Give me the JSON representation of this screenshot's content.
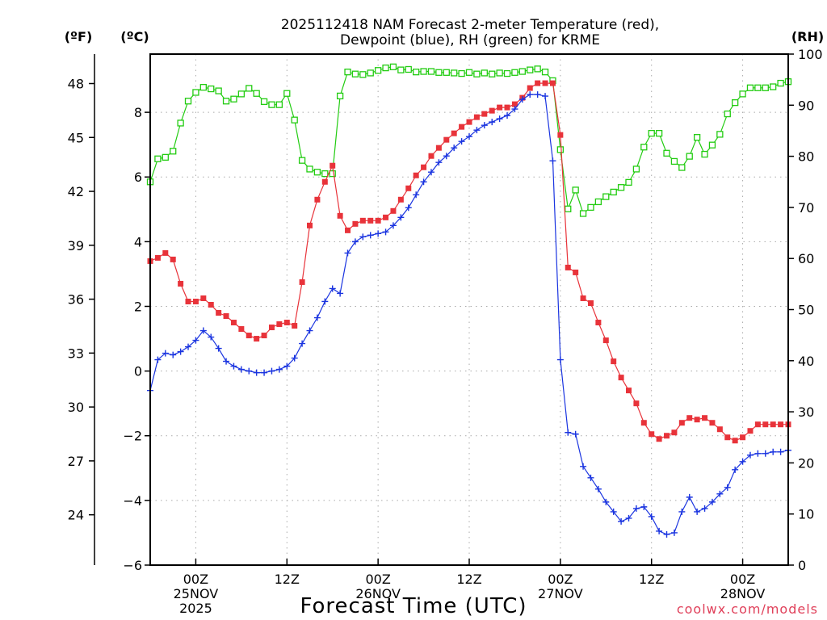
{
  "chart_data": {
    "type": "line",
    "title": [
      "2025112418 NAM Forecast 2-meter Temperature (red),",
      "Dewpoint (blue), RH (green) for KRME"
    ],
    "xlabel": "Forecast Time (UTC)",
    "watermark": "coolwx.com/models",
    "units": {
      "f": "(ºF)",
      "c": "(ºC)",
      "rh": "(RH)"
    },
    "x_unit": "forecast hour",
    "xlim": [
      0,
      84
    ],
    "ylim_c": [
      -6,
      9.8
    ],
    "ylim_rh": [
      0,
      100
    ],
    "x_ticks": [
      {
        "x": 6,
        "lines": [
          "00Z",
          "25NOV",
          "2025"
        ]
      },
      {
        "x": 18,
        "lines": [
          "12Z"
        ]
      },
      {
        "x": 30,
        "lines": [
          "00Z",
          "26NOV"
        ]
      },
      {
        "x": 42,
        "lines": [
          "12Z"
        ]
      },
      {
        "x": 54,
        "lines": [
          "00Z",
          "27NOV"
        ]
      },
      {
        "x": 66,
        "lines": [
          "12Z"
        ]
      },
      {
        "x": 78,
        "lines": [
          "00Z",
          "28NOV"
        ]
      }
    ],
    "y_ticks_c": [
      {
        "v": -6,
        "label": "−6"
      },
      {
        "v": -4,
        "label": "−4"
      },
      {
        "v": -2,
        "label": "−2"
      },
      {
        "v": 0,
        "label": "0"
      },
      {
        "v": 2,
        "label": "2"
      },
      {
        "v": 4,
        "label": "4"
      },
      {
        "v": 6,
        "label": "6"
      },
      {
        "v": 8,
        "label": "8"
      }
    ],
    "y_ticks_f": [
      {
        "v": 24,
        "label": "24"
      },
      {
        "v": 27,
        "label": "27"
      },
      {
        "v": 30,
        "label": "30"
      },
      {
        "v": 33,
        "label": "33"
      },
      {
        "v": 36,
        "label": "36"
      },
      {
        "v": 39,
        "label": "39"
      },
      {
        "v": 42,
        "label": "42"
      },
      {
        "v": 45,
        "label": "45"
      },
      {
        "v": 48,
        "label": "48"
      }
    ],
    "y_ticks_rh": [
      {
        "v": 0,
        "label": "0"
      },
      {
        "v": 10,
        "label": "10"
      },
      {
        "v": 20,
        "label": "20"
      },
      {
        "v": 30,
        "label": "30"
      },
      {
        "v": 40,
        "label": "40"
      },
      {
        "v": 50,
        "label": "50"
      },
      {
        "v": 60,
        "label": "60"
      },
      {
        "v": 70,
        "label": "70"
      },
      {
        "v": 80,
        "label": "80"
      },
      {
        "v": 90,
        "label": "90"
      },
      {
        "v": 100,
        "label": "100"
      }
    ],
    "series": [
      {
        "name": "Temperature",
        "unit": "C",
        "color": "#e8333a",
        "marker": "filled-square",
        "x": [
          0,
          1,
          2,
          3,
          4,
          5,
          6,
          7,
          8,
          9,
          10,
          11,
          12,
          13,
          14,
          15,
          16,
          17,
          18,
          19,
          20,
          21,
          22,
          23,
          24,
          25,
          26,
          27,
          28,
          29,
          30,
          31,
          32,
          33,
          34,
          35,
          36,
          37,
          38,
          39,
          40,
          41,
          42,
          43,
          44,
          45,
          46,
          47,
          48,
          49,
          50,
          51,
          52,
          53,
          54,
          55,
          56,
          57,
          58,
          59,
          60,
          61,
          62,
          63,
          64,
          65,
          66,
          67,
          68,
          69,
          70,
          71,
          72,
          73,
          74,
          75,
          76,
          77,
          78,
          79,
          80,
          81,
          82,
          83,
          84
        ],
        "values": [
          3.4,
          3.5,
          3.65,
          3.45,
          2.7,
          2.15,
          2.15,
          2.25,
          2.05,
          1.8,
          1.7,
          1.5,
          1.3,
          1.1,
          1.0,
          1.1,
          1.35,
          1.45,
          1.5,
          1.4,
          2.75,
          4.5,
          5.3,
          5.85,
          6.35,
          4.8,
          4.35,
          4.55,
          4.65,
          4.65,
          4.65,
          4.75,
          4.95,
          5.3,
          5.65,
          6.05,
          6.3,
          6.65,
          6.9,
          7.15,
          7.35,
          7.55,
          7.7,
          7.85,
          7.95,
          8.05,
          8.15,
          8.15,
          8.25,
          8.45,
          8.75,
          8.9,
          8.9,
          8.9,
          7.3,
          3.2,
          3.05,
          2.25,
          2.1,
          1.5,
          0.95,
          0.3,
          -0.2,
          -0.6,
          -1.0,
          -1.6,
          -1.95,
          -2.1,
          -2.0,
          -1.9,
          -1.6,
          -1.45,
          -1.5,
          -1.45,
          -1.6,
          -1.8,
          -2.05,
          -2.15,
          -2.05,
          -1.85,
          -1.65,
          -1.65,
          -1.65,
          -1.65,
          -1.65
        ]
      },
      {
        "name": "Dewpoint",
        "unit": "C",
        "color": "#1a34e0",
        "marker": "plus",
        "x": [
          0,
          1,
          2,
          3,
          4,
          5,
          6,
          7,
          8,
          9,
          10,
          11,
          12,
          13,
          14,
          15,
          16,
          17,
          18,
          19,
          20,
          21,
          22,
          23,
          24,
          25,
          26,
          27,
          28,
          29,
          30,
          31,
          32,
          33,
          34,
          35,
          36,
          37,
          38,
          39,
          40,
          41,
          42,
          43,
          44,
          45,
          46,
          47,
          48,
          49,
          50,
          51,
          52,
          53,
          54,
          55,
          56,
          57,
          58,
          59,
          60,
          61,
          62,
          63,
          64,
          65,
          66,
          67,
          68,
          69,
          70,
          71,
          72,
          73,
          74,
          75,
          76,
          77,
          78,
          79,
          80,
          81,
          82,
          83,
          84
        ],
        "values": [
          -0.6,
          0.35,
          0.55,
          0.5,
          0.6,
          0.75,
          0.95,
          1.25,
          1.05,
          0.7,
          0.3,
          0.15,
          0.05,
          0.0,
          -0.05,
          -0.05,
          0.0,
          0.05,
          0.15,
          0.4,
          0.85,
          1.25,
          1.65,
          2.15,
          2.55,
          2.4,
          3.65,
          4.0,
          4.15,
          4.2,
          4.25,
          4.3,
          4.5,
          4.75,
          5.05,
          5.45,
          5.85,
          6.15,
          6.45,
          6.65,
          6.9,
          7.1,
          7.25,
          7.45,
          7.6,
          7.7,
          7.8,
          7.9,
          8.1,
          8.4,
          8.55,
          8.55,
          8.5,
          6.5,
          0.35,
          -1.9,
          -1.95,
          -2.95,
          -3.3,
          -3.65,
          -4.05,
          -4.35,
          -4.65,
          -4.55,
          -4.25,
          -4.2,
          -4.5,
          -4.95,
          -5.05,
          -5.0,
          -4.35,
          -3.9,
          -4.35,
          -4.25,
          -4.05,
          -3.8,
          -3.6,
          -3.05,
          -2.8,
          -2.6,
          -2.55,
          -2.55,
          -2.5,
          -2.5,
          -2.45
        ]
      },
      {
        "name": "RH",
        "unit": "%",
        "color": "#22cc11",
        "marker": "open-square",
        "x": [
          0,
          1,
          2,
          3,
          4,
          5,
          6,
          7,
          8,
          9,
          10,
          11,
          12,
          13,
          14,
          15,
          16,
          17,
          18,
          19,
          20,
          21,
          22,
          23,
          24,
          25,
          26,
          27,
          28,
          29,
          30,
          31,
          32,
          33,
          34,
          35,
          36,
          37,
          38,
          39,
          40,
          41,
          42,
          43,
          44,
          45,
          46,
          47,
          48,
          49,
          50,
          51,
          52,
          53,
          54,
          55,
          56,
          57,
          58,
          59,
          60,
          61,
          62,
          63,
          64,
          65,
          66,
          67,
          68,
          69,
          70,
          71,
          72,
          73,
          74,
          75,
          76,
          77,
          78,
          79,
          80,
          81,
          82,
          83,
          84
        ],
        "values": [
          75,
          79.5,
          79.8,
          81,
          86.5,
          90.8,
          92.5,
          93.5,
          93.2,
          92.8,
          90.8,
          91.2,
          92.2,
          93.3,
          92.3,
          90.7,
          90.1,
          90.1,
          92.3,
          87.1,
          79.2,
          77.5,
          76.9,
          76.6,
          76.6,
          91.8,
          96.5,
          96.1,
          96.0,
          96.3,
          96.8,
          97.3,
          97.5,
          96.9,
          97.0,
          96.5,
          96.6,
          96.6,
          96.4,
          96.4,
          96.3,
          96.2,
          96.4,
          96.1,
          96.3,
          96.1,
          96.3,
          96.2,
          96.4,
          96.6,
          96.9,
          97.1,
          96.5,
          94.8,
          81.3,
          69.7,
          73.4,
          68.8,
          70.0,
          71.1,
          72.1,
          73.0,
          73.9,
          74.9,
          77.5,
          81.8,
          84.5,
          84.5,
          80.6,
          79.0,
          77.8,
          80.0,
          83.7,
          80.4,
          82.2,
          84.3,
          88.3,
          90.5,
          92.2,
          93.4,
          93.4,
          93.4,
          93.6,
          94.3,
          94.6
        ]
      }
    ]
  }
}
